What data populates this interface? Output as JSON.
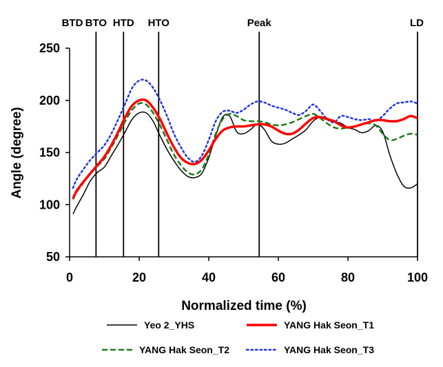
{
  "chart_data": {
    "type": "line",
    "xlabel": "Normalized time (%)",
    "ylabel": "Angle (degree)",
    "xlim": [
      0,
      100
    ],
    "ylim": [
      50,
      250
    ],
    "x_ticks": [
      0,
      20,
      40,
      60,
      80,
      100
    ],
    "y_ticks": [
      50,
      100,
      150,
      200,
      250
    ],
    "grid": false,
    "legend_position": "bottom",
    "events": [
      {
        "label": "BTD",
        "x": 0
      },
      {
        "label": "BTO",
        "x": 7.6
      },
      {
        "label": "HTD",
        "x": 15.5
      },
      {
        "label": "HTO",
        "x": 25.6
      },
      {
        "label": "Peak",
        "x": 54.5
      },
      {
        "label": "LD",
        "x": 100
      }
    ],
    "series": [
      {
        "name": "Yeo 2_YHS",
        "color": "#000000",
        "style": "solid",
        "x": [
          1,
          2,
          4,
          6,
          8,
          10,
          12,
          14,
          16,
          18,
          20,
          22,
          24,
          26,
          28,
          30,
          32,
          34,
          36,
          38,
          40,
          42,
          44,
          46,
          48,
          50,
          52,
          54,
          56,
          58,
          60,
          62,
          64,
          66,
          68,
          70,
          72,
          74,
          76,
          78,
          80,
          82,
          84,
          86,
          88,
          90,
          92,
          94,
          96,
          98,
          100
        ],
        "values": [
          91,
          98,
          110,
          123,
          131,
          136,
          147,
          158,
          170,
          182,
          188,
          188,
          180,
          166,
          153,
          142,
          133,
          127,
          126,
          130,
          145,
          166,
          184,
          185,
          170,
          168,
          172,
          177,
          172,
          161,
          158,
          159,
          163,
          167,
          172,
          180,
          184,
          183,
          180,
          178,
          174,
          172,
          169,
          171,
          176,
          170,
          148,
          130,
          118,
          116,
          120
        ]
      },
      {
        "name": "YANG Hak Seon_T1",
        "color": "#ff0000",
        "style": "solid",
        "x": [
          1,
          2,
          4,
          6,
          8,
          10,
          12,
          14,
          16,
          18,
          20,
          22,
          24,
          26,
          28,
          30,
          32,
          34,
          36,
          38,
          40,
          42,
          44,
          46,
          48,
          50,
          52,
          54,
          56,
          58,
          60,
          62,
          64,
          66,
          68,
          70,
          72,
          74,
          76,
          78,
          80,
          82,
          84,
          86,
          88,
          90,
          92,
          94,
          96,
          98,
          100
        ],
        "values": [
          106,
          113,
          122,
          130,
          138,
          146,
          157,
          170,
          184,
          195,
          200,
          200,
          193,
          182,
          168,
          155,
          145,
          140,
          139,
          143,
          152,
          163,
          171,
          174,
          175,
          175,
          176,
          177,
          177,
          175,
          171,
          168,
          168,
          172,
          178,
          183,
          184,
          182,
          180,
          176,
          174,
          175,
          177,
          179,
          181,
          181,
          180,
          180,
          182,
          185,
          183
        ]
      },
      {
        "name": "YANG Hak Seon_T2",
        "color": "#1a7a1a",
        "style": "dashed",
        "x": [
          1,
          2,
          4,
          6,
          8,
          10,
          12,
          14,
          16,
          18,
          20,
          22,
          24,
          26,
          28,
          30,
          32,
          34,
          36,
          38,
          40,
          42,
          44,
          46,
          48,
          50,
          52,
          54,
          56,
          58,
          60,
          62,
          64,
          66,
          68,
          70,
          72,
          74,
          76,
          78,
          80,
          82,
          84,
          86,
          88,
          90,
          92,
          94,
          96,
          98,
          100
        ],
        "values": [
          105,
          112,
          121,
          131,
          137,
          144,
          155,
          167,
          180,
          191,
          197,
          196,
          188,
          176,
          162,
          148,
          138,
          131,
          129,
          134,
          148,
          168,
          182,
          187,
          185,
          181,
          180,
          180,
          179,
          177,
          176,
          177,
          179,
          182,
          185,
          187,
          183,
          178,
          174,
          173,
          174,
          175,
          177,
          178,
          176,
          168,
          162,
          163,
          166,
          168,
          167
        ]
      },
      {
        "name": "YANG Hak Seon_T3",
        "color": "#2233dd",
        "style": "dotted",
        "x": [
          1,
          2,
          4,
          6,
          8,
          10,
          12,
          14,
          16,
          18,
          20,
          22,
          24,
          26,
          28,
          30,
          32,
          34,
          36,
          38,
          40,
          42,
          44,
          46,
          48,
          50,
          52,
          54,
          56,
          58,
          60,
          62,
          64,
          66,
          68,
          70,
          72,
          74,
          76,
          78,
          80,
          82,
          84,
          86,
          88,
          90,
          92,
          94,
          96,
          98,
          100
        ],
        "values": [
          116,
          124,
          134,
          143,
          150,
          157,
          168,
          182,
          197,
          212,
          219,
          219,
          212,
          200,
          185,
          168,
          155,
          145,
          141,
          147,
          162,
          180,
          189,
          190,
          188,
          191,
          196,
          199,
          198,
          195,
          193,
          191,
          188,
          186,
          190,
          196,
          190,
          182,
          179,
          185,
          184,
          182,
          181,
          182,
          180,
          185,
          192,
          197,
          198,
          199,
          197
        ]
      }
    ]
  }
}
